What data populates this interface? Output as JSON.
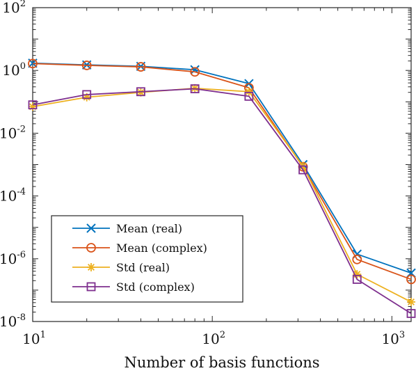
{
  "chart_data": {
    "type": "line",
    "title": "",
    "xlabel": "Number of basis functions",
    "ylabel": "",
    "x_scale": "log",
    "y_scale": "log",
    "xlim": [
      10,
      1280
    ],
    "ylim": [
      1e-08,
      100
    ],
    "grid": false,
    "legend_position": "bottom-left",
    "x": [
      10,
      20,
      40,
      80,
      160,
      320,
      640,
      1280
    ],
    "x_ticks": [
      {
        "value": 10,
        "base": "10",
        "exp": "1"
      },
      {
        "value": 100,
        "base": "10",
        "exp": "2"
      },
      {
        "value": 1000,
        "base": "10",
        "exp": "3"
      }
    ],
    "y_ticks": [
      {
        "value": 100,
        "base": "10",
        "exp": "2"
      },
      {
        "value": 1,
        "base": "10",
        "exp": "0"
      },
      {
        "value": 0.01,
        "base": "10",
        "exp": "-2"
      },
      {
        "value": 0.0001,
        "base": "10",
        "exp": "-4"
      },
      {
        "value": 1e-06,
        "base": "10",
        "exp": "-6"
      },
      {
        "value": 1e-08,
        "base": "10",
        "exp": "-8"
      }
    ],
    "series": [
      {
        "name": "Mean  (real)",
        "color": "#0072BD",
        "marker": "x",
        "values": [
          1.7,
          1.5,
          1.35,
          1.05,
          0.38,
          0.001,
          1.4e-06,
          3.5e-07
        ]
      },
      {
        "name": "Mean  (complex)",
        "color": "#D95319",
        "marker": "circle",
        "values": [
          1.65,
          1.45,
          1.3,
          0.9,
          0.28,
          0.00085,
          9.5e-07,
          2.2e-07
        ]
      },
      {
        "name": "Std  (real)",
        "color": "#EDB120",
        "marker": "asterisk",
        "values": [
          0.07,
          0.14,
          0.2,
          0.27,
          0.21,
          0.0009,
          3.2e-07,
          4.2e-08
        ]
      },
      {
        "name": "Std  (complex)",
        "color": "#7E2F8E",
        "marker": "square",
        "values": [
          0.08,
          0.17,
          0.21,
          0.26,
          0.15,
          0.00068,
          2.2e-07,
          1.8e-08
        ]
      }
    ]
  }
}
